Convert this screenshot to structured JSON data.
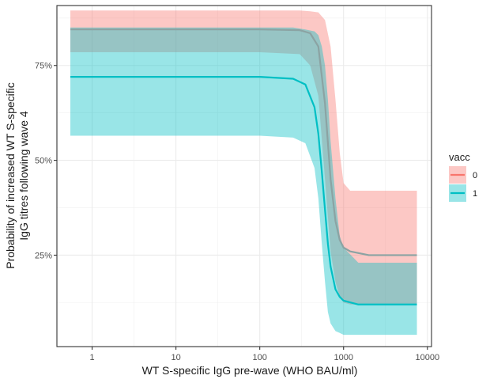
{
  "chart_data": {
    "type": "line",
    "title": "",
    "xlabel": "WT S-specific IgG pre-wave (WHO BAU/ml)",
    "ylabel_lines": [
      "Probability of increased WT S-specific",
      "IgG titres following wave 4"
    ],
    "x_scale": "log10",
    "xlim": [
      0.38,
      11200
    ],
    "ylim": [
      0.009,
      0.908
    ],
    "x_ticks": [
      1,
      10,
      100,
      1000,
      10000
    ],
    "x_tick_labels": [
      "1",
      "10",
      "100",
      "1000",
      "10000"
    ],
    "y_ticks": [
      0.25,
      0.5,
      0.75
    ],
    "y_tick_labels": [
      "25%",
      "50%",
      "75%"
    ],
    "grid": true,
    "legend": {
      "title": "vacc",
      "position": "right"
    },
    "series": [
      {
        "name": "0",
        "color": "#F8766D",
        "fill": "#F8766D",
        "x": [
          0.55,
          100,
          300,
          400,
          500,
          600,
          700,
          800,
          900,
          1000,
          1200,
          2000,
          7500
        ],
        "y": [
          0.845,
          0.845,
          0.843,
          0.835,
          0.8,
          0.65,
          0.45,
          0.34,
          0.29,
          0.27,
          0.26,
          0.25,
          0.25
        ],
        "lower": [
          0.785,
          0.785,
          0.78,
          0.75,
          0.67,
          0.45,
          0.26,
          0.18,
          0.14,
          0.125,
          0.12,
          0.12,
          0.12
        ],
        "upper": [
          0.895,
          0.895,
          0.895,
          0.893,
          0.89,
          0.87,
          0.8,
          0.66,
          0.52,
          0.44,
          0.42,
          0.42,
          0.42
        ]
      },
      {
        "name": "1",
        "color": "#00BFC4",
        "fill": "#00BFC4",
        "x": [
          0.55,
          100,
          250,
          350,
          450,
          500,
          550,
          600,
          650,
          700,
          800,
          900,
          1000,
          1500,
          7500
        ],
        "y": [
          0.72,
          0.72,
          0.715,
          0.7,
          0.64,
          0.57,
          0.47,
          0.37,
          0.28,
          0.22,
          0.16,
          0.14,
          0.13,
          0.12,
          0.12
        ],
        "lower": [
          0.565,
          0.565,
          0.56,
          0.545,
          0.48,
          0.4,
          0.28,
          0.18,
          0.1,
          0.07,
          0.05,
          0.045,
          0.04,
          0.04,
          0.04
        ],
        "upper": [
          0.85,
          0.85,
          0.85,
          0.845,
          0.84,
          0.83,
          0.8,
          0.75,
          0.66,
          0.55,
          0.4,
          0.3,
          0.27,
          0.23,
          0.23
        ]
      }
    ],
    "overlap_color": "#8BA3A3"
  }
}
